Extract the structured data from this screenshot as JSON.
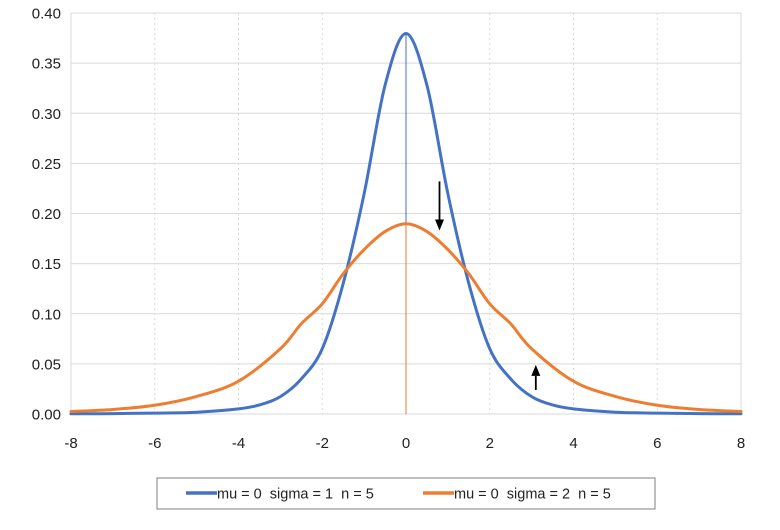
{
  "colors": {
    "series_1": "#4472C4",
    "series_2": "#ED7D31",
    "grid": "#D9D9D9",
    "axis_text": "#222222",
    "arrow": "#000000"
  },
  "chart_data": {
    "type": "line",
    "title": "",
    "xlabel": "",
    "ylabel": "",
    "xlim": [
      -8,
      8
    ],
    "ylim": [
      0,
      0.4
    ],
    "x_ticks": [
      "-8",
      "-6",
      "-4",
      "-2",
      "0",
      "2",
      "4",
      "6",
      "8"
    ],
    "y_ticks": [
      "0.00",
      "0.05",
      "0.10",
      "0.15",
      "0.20",
      "0.25",
      "0.30",
      "0.35",
      "0.40"
    ],
    "grid": "vertical dotted and horizontal",
    "legend_position": "bottom",
    "series": [
      {
        "name": "mu = 0  sigma = 1  n = 5",
        "x": [
          -8,
          -7,
          -6,
          -5,
          -4,
          -3.5,
          -3,
          -2.5,
          -2,
          -1.5,
          -1,
          -0.5,
          0,
          0.5,
          1,
          1.5,
          2,
          2.5,
          3,
          3.5,
          4,
          5,
          6,
          7,
          8
        ],
        "y": [
          0.0002,
          0.0004,
          0.0009,
          0.0018,
          0.0051,
          0.009,
          0.0173,
          0.035,
          0.0651,
          0.1302,
          0.2197,
          0.3279,
          0.3796,
          0.3279,
          0.2197,
          0.1302,
          0.0651,
          0.035,
          0.0173,
          0.009,
          0.0051,
          0.0018,
          0.0009,
          0.0004,
          0.0002
        ]
      },
      {
        "name": "mu = 0  sigma = 2  n = 5",
        "x": [
          -8,
          -7,
          -6,
          -5,
          -4,
          -3,
          -2.5,
          -2,
          -1.5,
          -1,
          -0.5,
          0,
          0.5,
          1,
          1.5,
          2,
          2.5,
          3,
          4,
          5,
          6,
          7,
          8
        ],
        "y": [
          0.0025,
          0.0045,
          0.0087,
          0.0175,
          0.0327,
          0.0651,
          0.09,
          0.1099,
          0.1399,
          0.164,
          0.182,
          0.1898,
          0.182,
          0.164,
          0.1399,
          0.1099,
          0.09,
          0.0651,
          0.0327,
          0.0175,
          0.0087,
          0.0045,
          0.0025
        ]
      }
    ],
    "annotations": [
      {
        "type": "arrow-down",
        "x": 0.8,
        "y_from": 0.232,
        "y_to": 0.183
      },
      {
        "type": "arrow-up",
        "x": 3.1,
        "y_from": 0.024,
        "y_to": 0.049
      }
    ]
  }
}
